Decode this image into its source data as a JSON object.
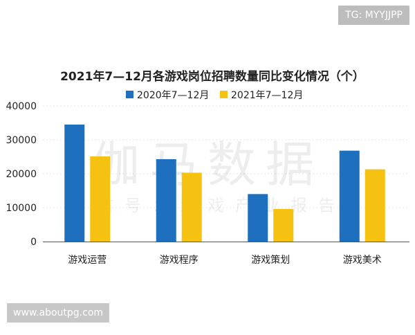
{
  "header_tag": "TG: MYYJJPP",
  "footer_site": "www.aboutpg.com",
  "watermark": {
    "large": "伽马数据",
    "small": "微信号：游戏产业报告"
  },
  "colors": {
    "series_2020": "#1f6fbf",
    "series_2021": "#f5c211",
    "grid": "#e6e6e6",
    "axis": "#555555",
    "text": "#222222"
  },
  "chart_data": {
    "type": "bar",
    "title": "2021年7—12月各游戏岗位招聘数量同比变化情况（个）",
    "categories": [
      "游戏运营",
      "游戏程序",
      "游戏策划",
      "游戏美术"
    ],
    "series": [
      {
        "name": "2020年7—12月",
        "values": [
          34500,
          24300,
          14000,
          26800
        ]
      },
      {
        "name": "2021年7—12月",
        "values": [
          25100,
          20300,
          9600,
          21300
        ]
      }
    ],
    "ylim": [
      0,
      40000
    ],
    "yticks": [
      "0",
      "10000",
      "20000",
      "30000",
      "40000"
    ],
    "ytick_values": [
      0,
      10000,
      20000,
      30000,
      40000
    ],
    "xlabel": "",
    "ylabel": "",
    "legend_position": "top-center",
    "grid": true
  }
}
